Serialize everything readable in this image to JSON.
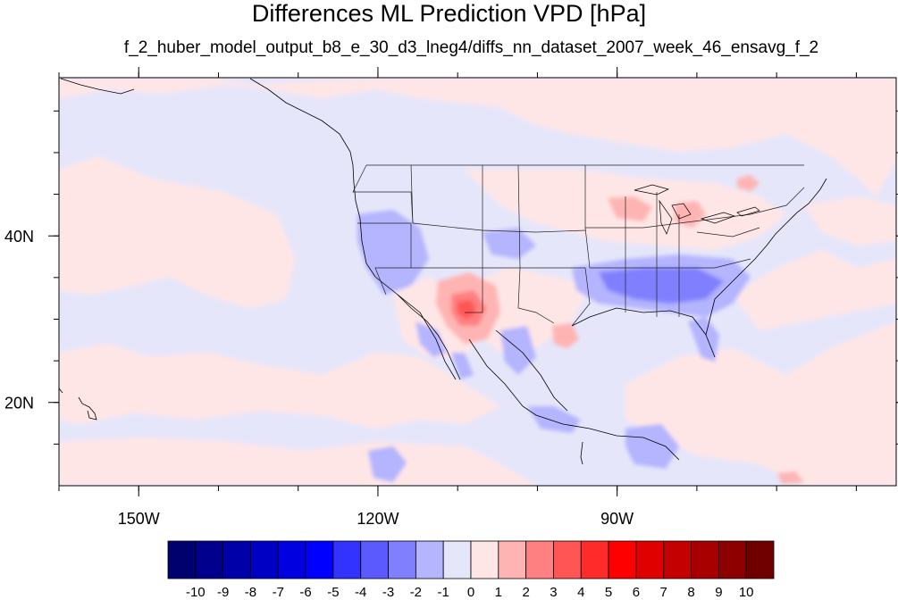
{
  "title": "Differences ML Prediction VPD [hPa]",
  "subtitle": "f_2_huber_model_output_b8_e_30_d3_lneg4/diffs_nn_dataset_2007_week_46_ensavg_f_2",
  "map": {
    "projection": "cylindrical equidistant",
    "lon_range": [
      -160,
      -55
    ],
    "lat_range": [
      10,
      59
    ],
    "lon_ticks": [
      {
        "value": -150,
        "label": "150W"
      },
      {
        "value": -120,
        "label": "120W"
      },
      {
        "value": -90,
        "label": "90W"
      }
    ],
    "lat_ticks": [
      {
        "value": 40,
        "label": "40N"
      },
      {
        "value": 20,
        "label": "20N"
      }
    ],
    "background_color": "#e6e6fa",
    "features": [
      "coastlines",
      "us-state-boundaries"
    ]
  },
  "colorbar": {
    "labels": [
      "-10",
      "-9",
      "-8",
      "-7",
      "-6",
      "-5",
      "-4",
      "-3",
      "-2",
      "-1",
      "0",
      "1",
      "2",
      "3",
      "4",
      "5",
      "6",
      "7",
      "8",
      "9",
      "10"
    ],
    "colors": [
      "#00006e",
      "#00008c",
      "#0000a8",
      "#0000c4",
      "#0000e0",
      "#0000ff",
      "#3333ff",
      "#5a5aff",
      "#8080ff",
      "#b4b4ff",
      "#e6e6fa",
      "#ffe6e6",
      "#ffb4b4",
      "#ff8080",
      "#ff5555",
      "#ff2a2a",
      "#ff0000",
      "#e00000",
      "#c40000",
      "#a80000",
      "#8c0000",
      "#700000"
    ]
  }
}
